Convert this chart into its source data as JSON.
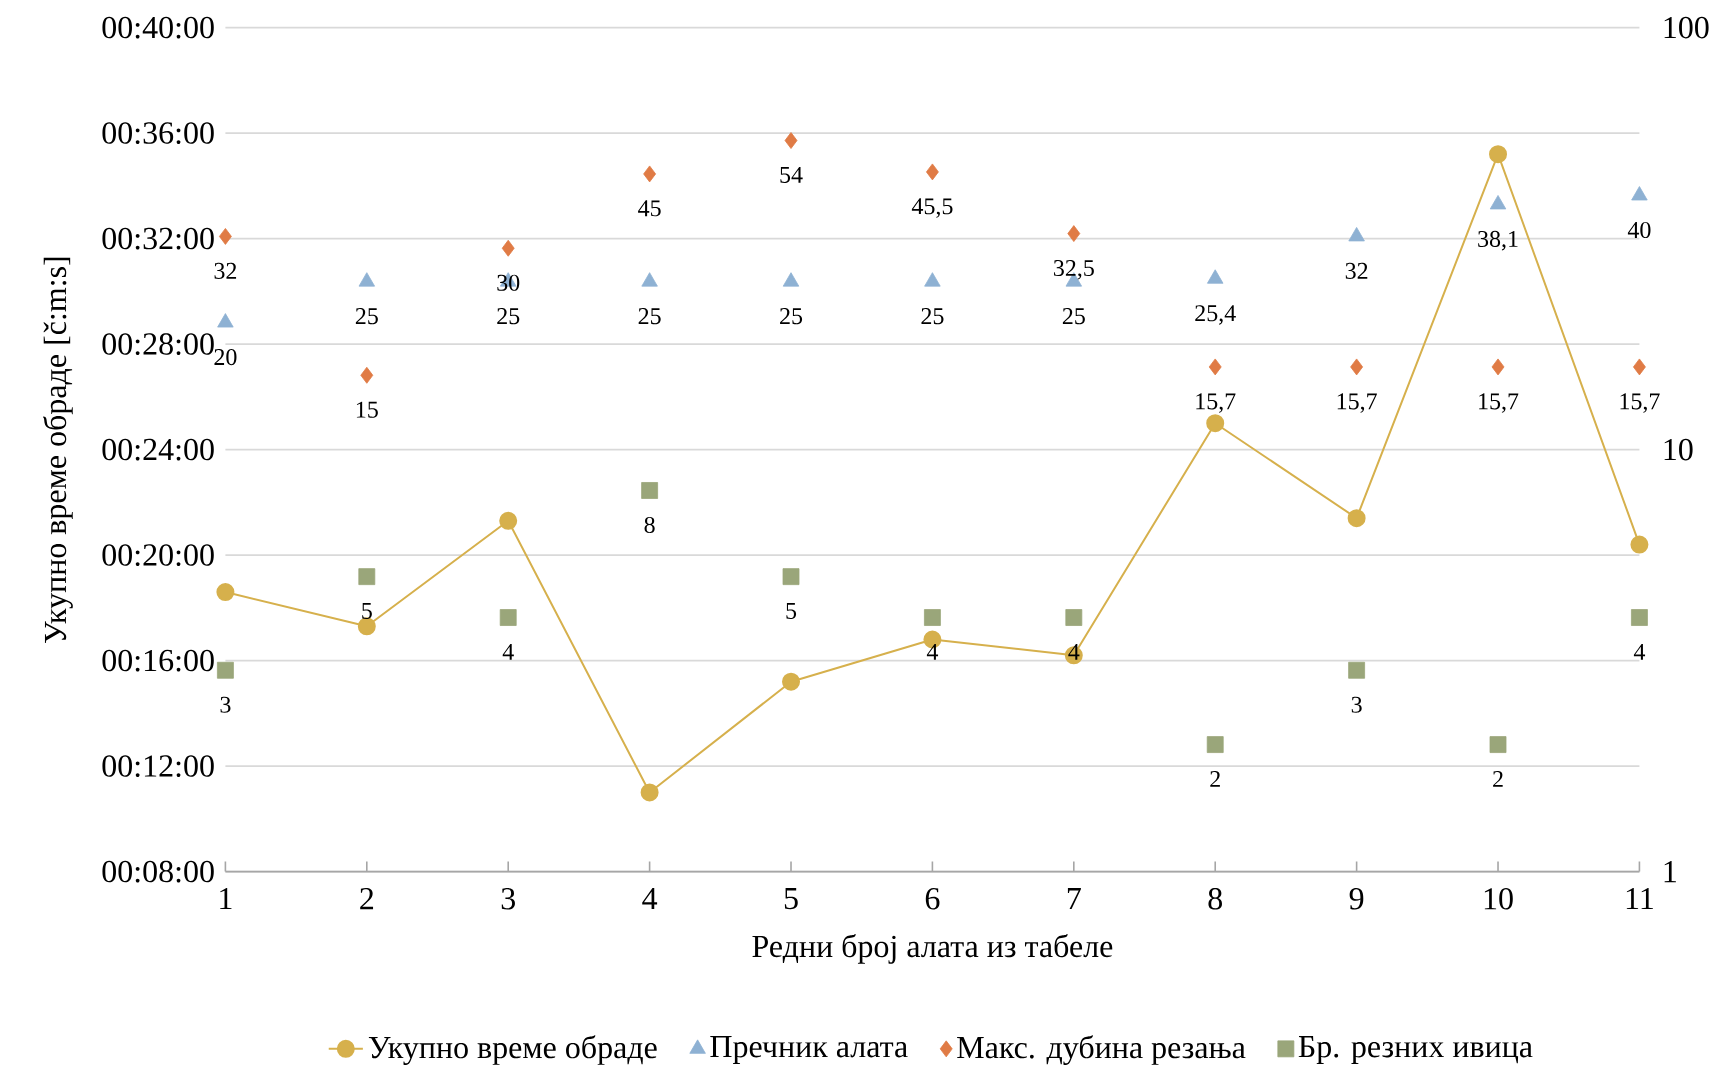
{
  "chart_data": {
    "type": "line",
    "xlabel": "Редни број алата из табеле",
    "ylabel": "Укупно време обраде [č:m:s]",
    "categories": [
      "1",
      "2",
      "3",
      "4",
      "5",
      "6",
      "7",
      "8",
      "9",
      "10",
      "11"
    ],
    "ylim": [
      8,
      40
    ],
    "yticks": [
      {
        "value": 8,
        "label": "00:08:00"
      },
      {
        "value": 12,
        "label": "00:12:00"
      },
      {
        "value": 16,
        "label": "00:16:00"
      },
      {
        "value": 20,
        "label": "00:20:00"
      },
      {
        "value": 24,
        "label": "00:24:00"
      },
      {
        "value": 28,
        "label": "00:28:00"
      },
      {
        "value": 32,
        "label": "00:32:00"
      },
      {
        "value": 36,
        "label": "00:36:00"
      },
      {
        "value": 40,
        "label": "00:40:00"
      }
    ],
    "y2lim": [
      1,
      100
    ],
    "y2ticks": [
      1,
      10,
      100
    ],
    "log": "y2",
    "grid": "y",
    "legend": "bottom",
    "series": [
      {
        "name": "Укупно време обраде",
        "color": "#d6b04c",
        "marker": "circle",
        "values": [
          18.6,
          17.3,
          21.3,
          11.0,
          15.2,
          16.8,
          16.2,
          25.0,
          21.4,
          35.2,
          20.4
        ]
      },
      {
        "name": "Пречник алата",
        "type": "scatter",
        "axis": "y2",
        "color": "#8eb1d3",
        "marker": "triangle",
        "values": [
          20,
          25,
          25,
          25,
          25,
          25,
          25,
          25.4,
          32,
          38.1,
          40
        ],
        "value_labels": [
          "20",
          "25",
          "25",
          "25",
          "25",
          "25",
          "25",
          "25,4",
          "32",
          "38,1",
          "40"
        ]
      },
      {
        "name": "Макс. дубина резања",
        "type": "scatter",
        "axis": "y2",
        "color": "#e07b45",
        "marker": "diamond",
        "values": [
          32,
          15,
          30,
          45,
          54,
          45.5,
          32.5,
          15.7,
          15.7,
          15.7,
          15.7
        ],
        "value_labels": [
          "32",
          "15",
          "30",
          "45",
          "54",
          "45,5",
          "32,5",
          "15,7",
          "15,7",
          "15,7",
          "15,7"
        ]
      },
      {
        "name": "Бр. резних ивица",
        "type": "scatter",
        "axis": "y2",
        "color": "#9aa67a",
        "marker": "square",
        "values": [
          3,
          5,
          4,
          8,
          5,
          4,
          4,
          2,
          3,
          2,
          4
        ],
        "value_labels": [
          "3",
          "5",
          "4",
          "8",
          "5",
          "4",
          "4",
          "2",
          "3",
          "2",
          "4"
        ]
      }
    ]
  }
}
